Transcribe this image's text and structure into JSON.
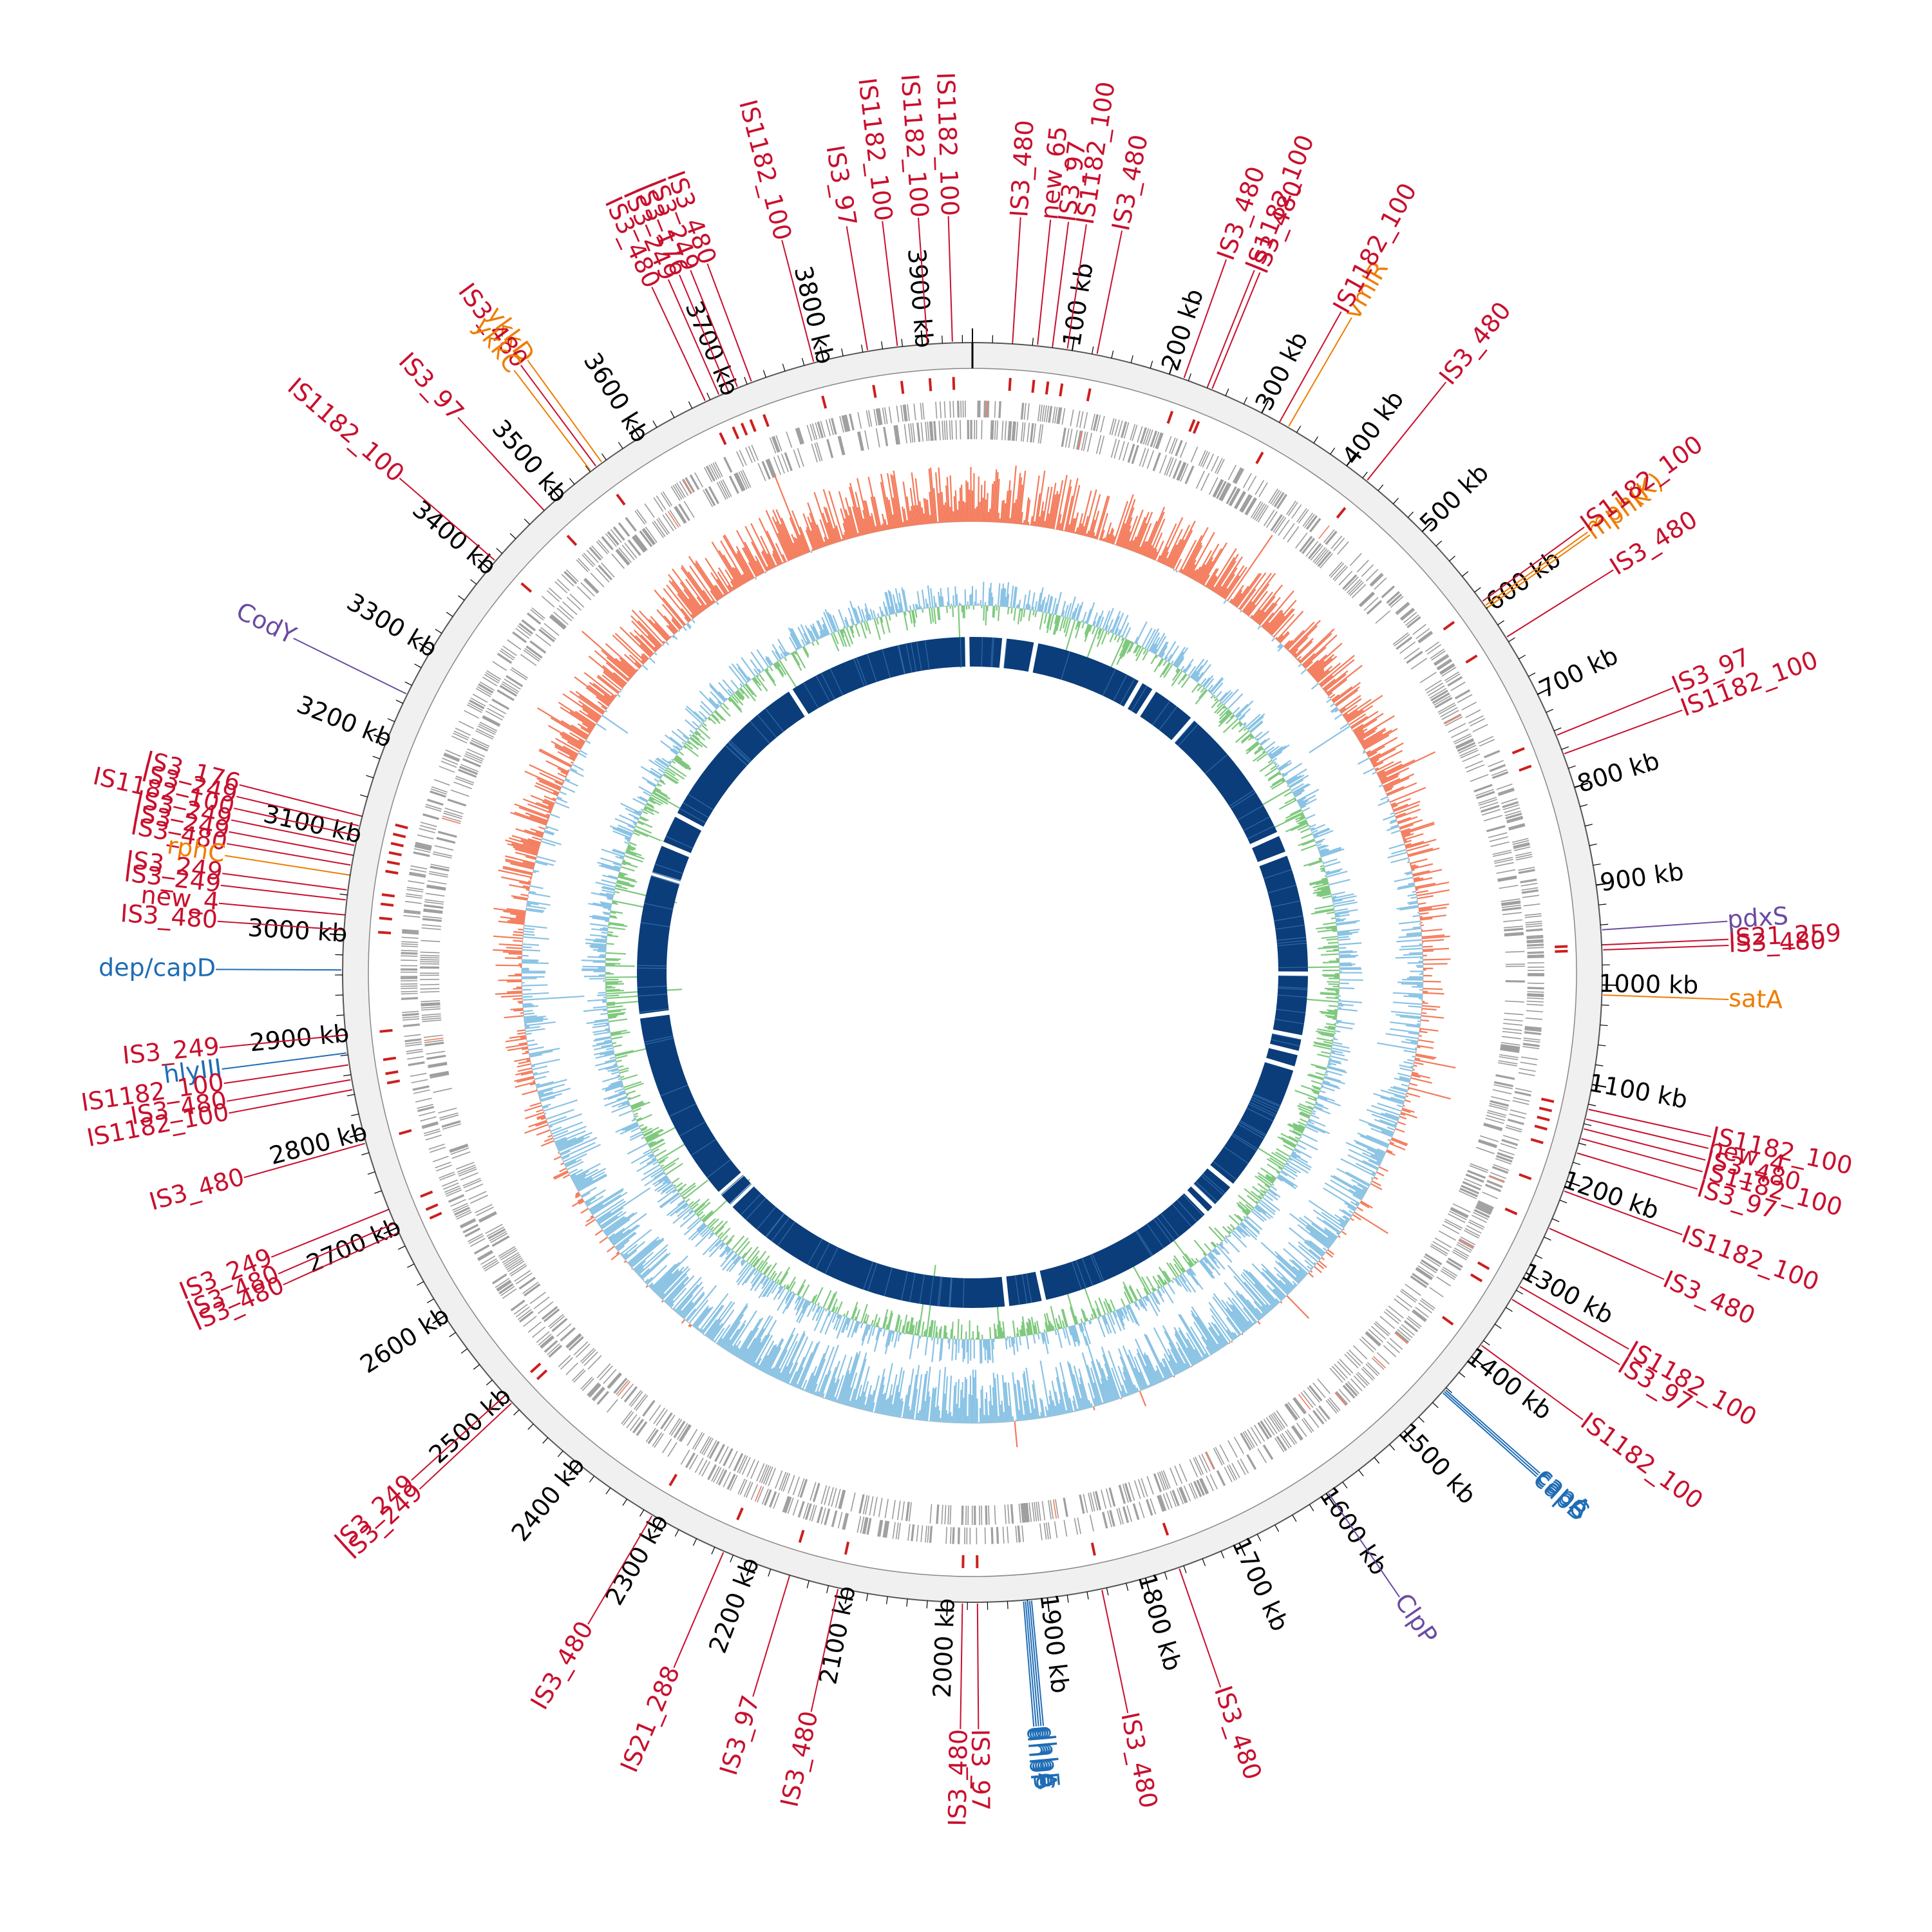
{
  "genome": {
    "total_kb": 3950
  },
  "tracks": {
    "backbone_color": "#f0f0f0",
    "cds_color": "#9a9a9a",
    "is_mark_color": "#cc1f1f",
    "gc_content_colors": {
      "high": "#f47a5a",
      "low": "#8ac3e4"
    },
    "gc_skew_colors": {
      "positive": "#8ac3e4",
      "negative": "#7fc97f"
    },
    "contig_color": "#0b3d7a"
  },
  "ticks": [
    {
      "kb": 100,
      "label": "100 kb"
    },
    {
      "kb": 200,
      "label": "200 kb"
    },
    {
      "kb": 300,
      "label": "300 kb"
    },
    {
      "kb": 400,
      "label": "400 kb"
    },
    {
      "kb": 500,
      "label": "500 kb"
    },
    {
      "kb": 600,
      "label": "600 kb"
    },
    {
      "kb": 700,
      "label": "700 kb"
    },
    {
      "kb": 800,
      "label": "800 kb"
    },
    {
      "kb": 900,
      "label": "900 kb"
    },
    {
      "kb": 1000,
      "label": "1000 kb"
    },
    {
      "kb": 1100,
      "label": "1100 kb"
    },
    {
      "kb": 1200,
      "label": "1200 kb"
    },
    {
      "kb": 1300,
      "label": "1300 kb"
    },
    {
      "kb": 1400,
      "label": "1400 kb"
    },
    {
      "kb": 1500,
      "label": "1500 kb"
    },
    {
      "kb": 1600,
      "label": "1600 kb"
    },
    {
      "kb": 1700,
      "label": "1700 kb"
    },
    {
      "kb": 1800,
      "label": "1800 kb"
    },
    {
      "kb": 1900,
      "label": "1900 kb"
    },
    {
      "kb": 2000,
      "label": "2000 kb"
    },
    {
      "kb": 2100,
      "label": "2100 kb"
    },
    {
      "kb": 2200,
      "label": "2200 kb"
    },
    {
      "kb": 2300,
      "label": "2300 kb"
    },
    {
      "kb": 2400,
      "label": "2400 kb"
    },
    {
      "kb": 2500,
      "label": "2500 kb"
    },
    {
      "kb": 2600,
      "label": "2600 kb"
    },
    {
      "kb": 2700,
      "label": "2700 kb"
    },
    {
      "kb": 2800,
      "label": "2800 kb"
    },
    {
      "kb": 2900,
      "label": "2900 kb"
    },
    {
      "kb": 3000,
      "label": "3000 kb"
    },
    {
      "kb": 3100,
      "label": "3100 kb"
    },
    {
      "kb": 3200,
      "label": "3200 kb"
    },
    {
      "kb": 3300,
      "label": "3300 kb"
    },
    {
      "kb": 3400,
      "label": "3400 kb"
    },
    {
      "kb": 3500,
      "label": "3500 kb"
    },
    {
      "kb": 3600,
      "label": "3600 kb"
    },
    {
      "kb": 3700,
      "label": "3700 kb"
    },
    {
      "kb": 3800,
      "label": "3800 kb"
    },
    {
      "kb": 3900,
      "label": "3900 kb"
    }
  ],
  "feature_colors": {
    "is": "#c8102e",
    "resistance": "#ef7d00",
    "virulence": "#1f6db5",
    "regulator": "#6a4ba1"
  },
  "features": [
    {
      "kb": 3905,
      "label": "IS1182_100",
      "cat": "is"
    },
    {
      "kb": 3930,
      "label": "IS1182_100",
      "cat": "is"
    },
    {
      "kb": 3875,
      "label": "IS1182_100",
      "cat": "is"
    },
    {
      "kb": 3845,
      "label": "IS3_97",
      "cat": "is"
    },
    {
      "kb": 3790,
      "label": "IS1182_100",
      "cat": "is"
    },
    {
      "kb": 3725,
      "label": "IS3_480",
      "cat": "is"
    },
    {
      "kb": 3710,
      "label": "IS3_249",
      "cat": "is"
    },
    {
      "kb": 3700,
      "label": "IS3_176",
      "cat": "is"
    },
    {
      "kb": 3690,
      "label": "IS3_249",
      "cat": "is"
    },
    {
      "kb": 3675,
      "label": "IS3_480",
      "cat": "is"
    },
    {
      "kb": 3555,
      "label": "ykkD",
      "cat": "resistance"
    },
    {
      "kb": 3548,
      "label": "IS3_480",
      "cat": "is"
    },
    {
      "kb": 3541,
      "label": "ykkC",
      "cat": "resistance"
    },
    {
      "kb": 3480,
      "label": "IS3_97",
      "cat": "is"
    },
    {
      "kb": 3410,
      "label": "IS1182_100",
      "cat": "is"
    },
    {
      "kb": 3250,
      "label": "CodY",
      "cat": "regulator"
    },
    {
      "kb": 3120,
      "label": "IS3_176",
      "cat": "is"
    },
    {
      "kb": 3110,
      "label": "IS3_249",
      "cat": "is"
    },
    {
      "kb": 3100,
      "label": "IS1182_100",
      "cat": "is"
    },
    {
      "kb": 3090,
      "label": "IS3_249",
      "cat": "is"
    },
    {
      "kb": 3080,
      "label": "IS3_249",
      "cat": "is"
    },
    {
      "kb": 3070,
      "label": "IS3_480",
      "cat": "is"
    },
    {
      "kb": 3060,
      "label": "rphC",
      "cat": "resistance"
    },
    {
      "kb": 3045,
      "label": "IS3_249",
      "cat": "is"
    },
    {
      "kb": 3035,
      "label": "IS3_249",
      "cat": "is"
    },
    {
      "kb": 3020,
      "label": "new_4",
      "cat": "is"
    },
    {
      "kb": 3005,
      "label": "IS3_480",
      "cat": "is"
    },
    {
      "kb": 2965,
      "label": "dep/capD",
      "cat": "virulence"
    },
    {
      "kb": 2900,
      "label": "IS3_249",
      "cat": "is"
    },
    {
      "kb": 2882,
      "label": "hlyIII",
      "cat": "virulence"
    },
    {
      "kb": 2870,
      "label": "IS1182_100",
      "cat": "is"
    },
    {
      "kb": 2855,
      "label": "IS3_480",
      "cat": "is"
    },
    {
      "kb": 2845,
      "label": "IS1182_100",
      "cat": "is"
    },
    {
      "kb": 2790,
      "label": "IS3_480",
      "cat": "is"
    },
    {
      "kb": 2720,
      "label": "IS3_249",
      "cat": "is"
    },
    {
      "kb": 2705,
      "label": "IS3_480",
      "cat": "is"
    },
    {
      "kb": 2695,
      "label": "IS3_480",
      "cat": "is"
    },
    {
      "kb": 2500,
      "label": "IS3_249",
      "cat": "is"
    },
    {
      "kb": 2490,
      "label": "IS3_249",
      "cat": "is"
    },
    {
      "kb": 2310,
      "label": "IS3_480",
      "cat": "is"
    },
    {
      "kb": 2230,
      "label": "IS21_288",
      "cat": "is"
    },
    {
      "kb": 2160,
      "label": "IS3_97",
      "cat": "is"
    },
    {
      "kb": 2110,
      "label": "IS3_480",
      "cat": "is"
    },
    {
      "kb": 1985,
      "label": "IS3_480",
      "cat": "is"
    },
    {
      "kb": 1970,
      "label": "IS3_97",
      "cat": "is"
    },
    {
      "kb": 1924,
      "label": "dhbF",
      "cat": "virulence"
    },
    {
      "kb": 1922,
      "label": "dhbB",
      "cat": "virulence"
    },
    {
      "kb": 1920,
      "label": "dhbC",
      "cat": "virulence"
    },
    {
      "kb": 1918,
      "label": "dhbA",
      "cat": "virulence"
    },
    {
      "kb": 1916,
      "label": "dhbE",
      "cat": "virulence"
    },
    {
      "kb": 1845,
      "label": "IS3_480",
      "cat": "is"
    },
    {
      "kb": 1765,
      "label": "IS3_480",
      "cat": "is"
    },
    {
      "kb": 1598,
      "label": "ClpP",
      "cat": "regulator"
    },
    {
      "kb": 1446,
      "label": "capB",
      "cat": "virulence"
    },
    {
      "kb": 1444,
      "label": "capC",
      "cat": "virulence"
    },
    {
      "kb": 1442,
      "label": "capA",
      "cat": "virulence"
    },
    {
      "kb": 1385,
      "label": "IS1182_100",
      "cat": "is"
    },
    {
      "kb": 1330,
      "label": "IS3_97",
      "cat": "is"
    },
    {
      "kb": 1315,
      "label": "IS1182_100",
      "cat": "is"
    },
    {
      "kb": 1250,
      "label": "IS3_480",
      "cat": "is"
    },
    {
      "kb": 1210,
      "label": "IS1182_100",
      "cat": "is"
    },
    {
      "kb": 1170,
      "label": "IS3_97",
      "cat": "is"
    },
    {
      "kb": 1155,
      "label": "IS1182_100",
      "cat": "is"
    },
    {
      "kb": 1145,
      "label": "IS3_480",
      "cat": "is"
    },
    {
      "kb": 1135,
      "label": "new_4",
      "cat": "is"
    },
    {
      "kb": 1125,
      "label": "IS1182_100",
      "cat": "is"
    },
    {
      "kb": 1010,
      "label": "satA",
      "cat": "resistance"
    },
    {
      "kb": 965,
      "label": "IS3_480",
      "cat": "is"
    },
    {
      "kb": 960,
      "label": "IS21_259",
      "cat": "is"
    },
    {
      "kb": 945,
      "label": "pdxS",
      "cat": "regulator"
    },
    {
      "kb": 765,
      "label": "IS1182_100",
      "cat": "is"
    },
    {
      "kb": 745,
      "label": "IS3_97",
      "cat": "is"
    },
    {
      "kb": 635,
      "label": "IS3_480",
      "cat": "is"
    },
    {
      "kb": 600,
      "label": "mphK",
      "cat": "resistance"
    },
    {
      "kb": 597,
      "label": "mph(K)",
      "cat": "resistance"
    },
    {
      "kb": 592,
      "label": "IS1182_100",
      "cat": "is"
    },
    {
      "kb": 425,
      "label": "IS3_480",
      "cat": "is"
    },
    {
      "kb": 330,
      "label": "vmlR",
      "cat": "resistance"
    },
    {
      "kb": 320,
      "label": "IS1182_100",
      "cat": "is"
    },
    {
      "kb": 245,
      "label": "IS3_480",
      "cat": "is"
    },
    {
      "kb": 240,
      "label": "IS1182_100",
      "cat": "is"
    },
    {
      "kb": 215,
      "label": "IS3_480",
      "cat": "is"
    },
    {
      "kb": 125,
      "label": "IS3_480",
      "cat": "is"
    },
    {
      "kb": 95,
      "label": "IS1182_100",
      "cat": "is"
    },
    {
      "kb": 80,
      "label": "IS3_97",
      "cat": "is"
    },
    {
      "kb": 65,
      "label": "new_65",
      "cat": "is"
    },
    {
      "kb": 40,
      "label": "IS3_480",
      "cat": "is"
    }
  ],
  "contig_gaps_kb": [
    60,
    120,
    330,
    360,
    450,
    720,
    760,
    990,
    1110,
    1140,
    1170,
    1420,
    1470,
    1490,
    1840,
    1910,
    2480,
    2510,
    2880,
    3150,
    3210,
    3270,
    3590,
    3940
  ]
}
